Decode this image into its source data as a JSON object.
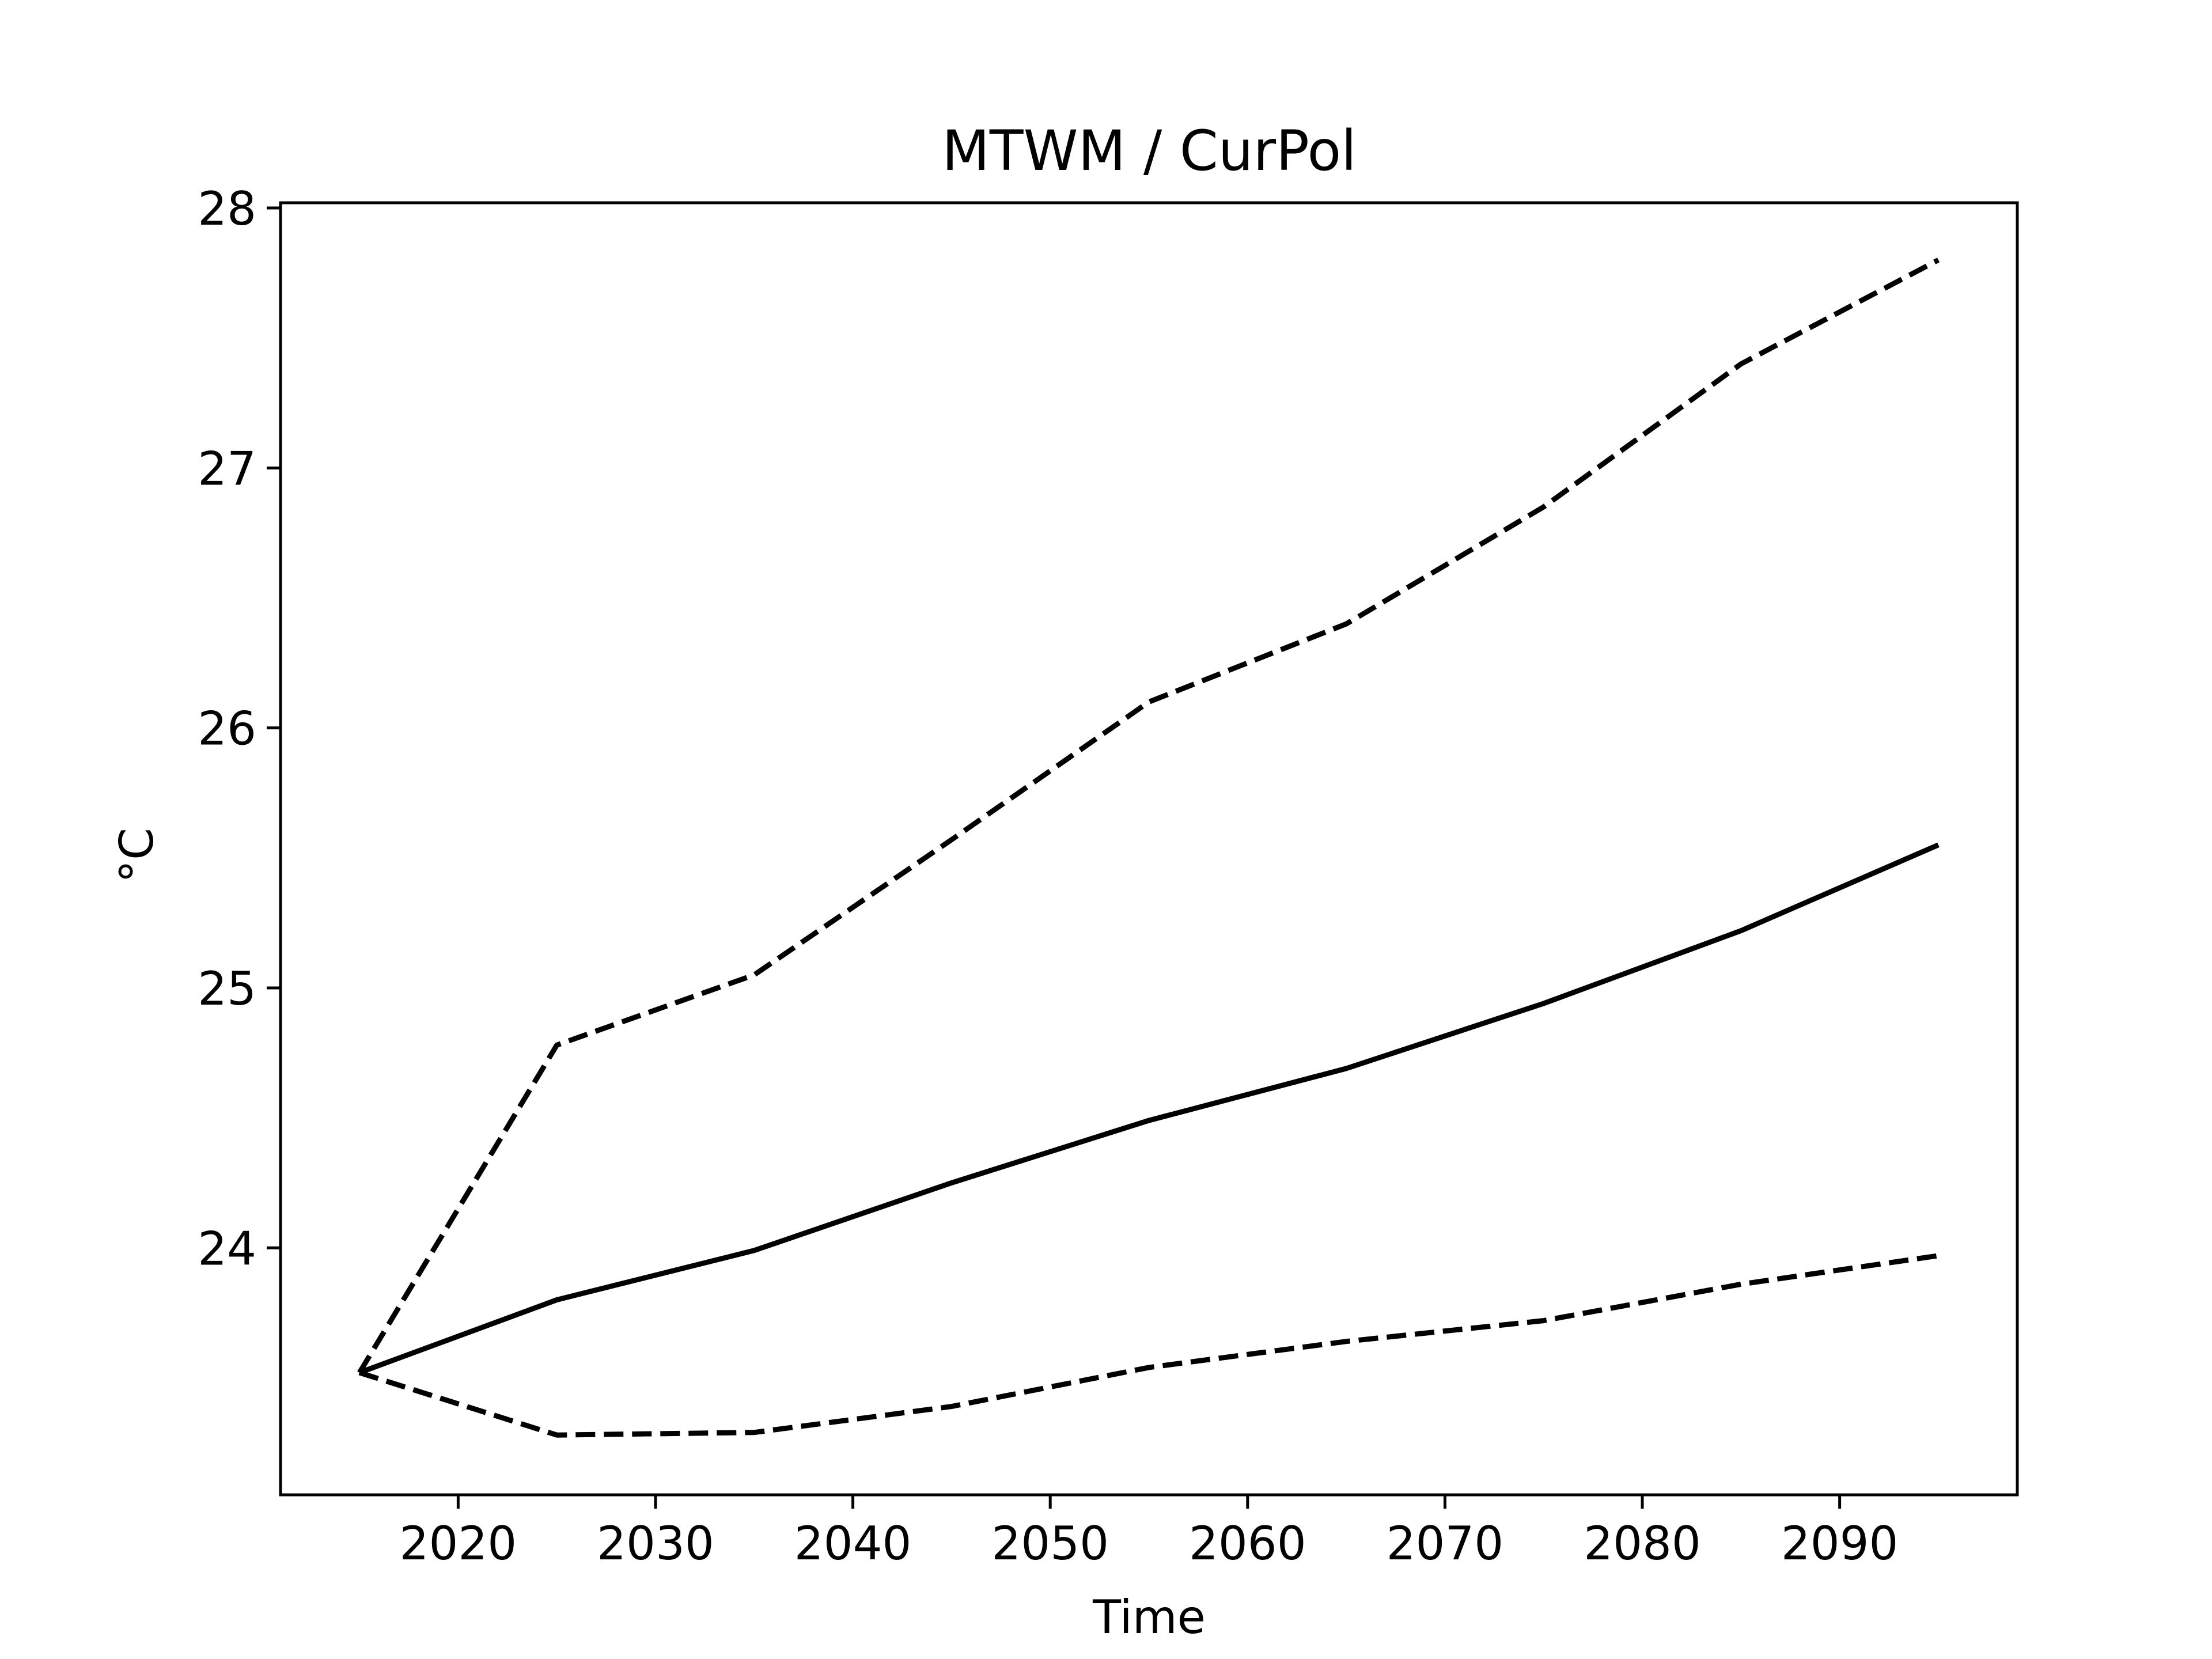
{
  "chart_data": {
    "type": "line",
    "title": "MTWM / CurPol",
    "xlabel": "Time",
    "ylabel": "°C",
    "x": [
      2015,
      2025,
      2035,
      2045,
      2055,
      2065,
      2075,
      2085,
      2095
    ],
    "xlim": [
      2011,
      2099
    ],
    "ylim": [
      23.05,
      28.02
    ],
    "xticks": [
      2020,
      2030,
      2040,
      2050,
      2060,
      2070,
      2080,
      2090
    ],
    "yticks": [
      24,
      25,
      26,
      27,
      28
    ],
    "grid": false,
    "series": [
      {
        "style": "dashed",
        "color": "#000000",
        "values": [
          23.52,
          24.78,
          25.05,
          25.57,
          26.1,
          26.4,
          26.85,
          27.4,
          27.8
        ]
      },
      {
        "style": "solid",
        "color": "#000000",
        "values": [
          23.52,
          23.8,
          23.99,
          24.25,
          24.49,
          24.69,
          24.94,
          25.22,
          25.55
        ]
      },
      {
        "style": "dashed",
        "color": "#000000",
        "values": [
          23.52,
          23.28,
          23.29,
          23.39,
          23.54,
          23.64,
          23.72,
          23.86,
          23.97
        ]
      }
    ]
  }
}
